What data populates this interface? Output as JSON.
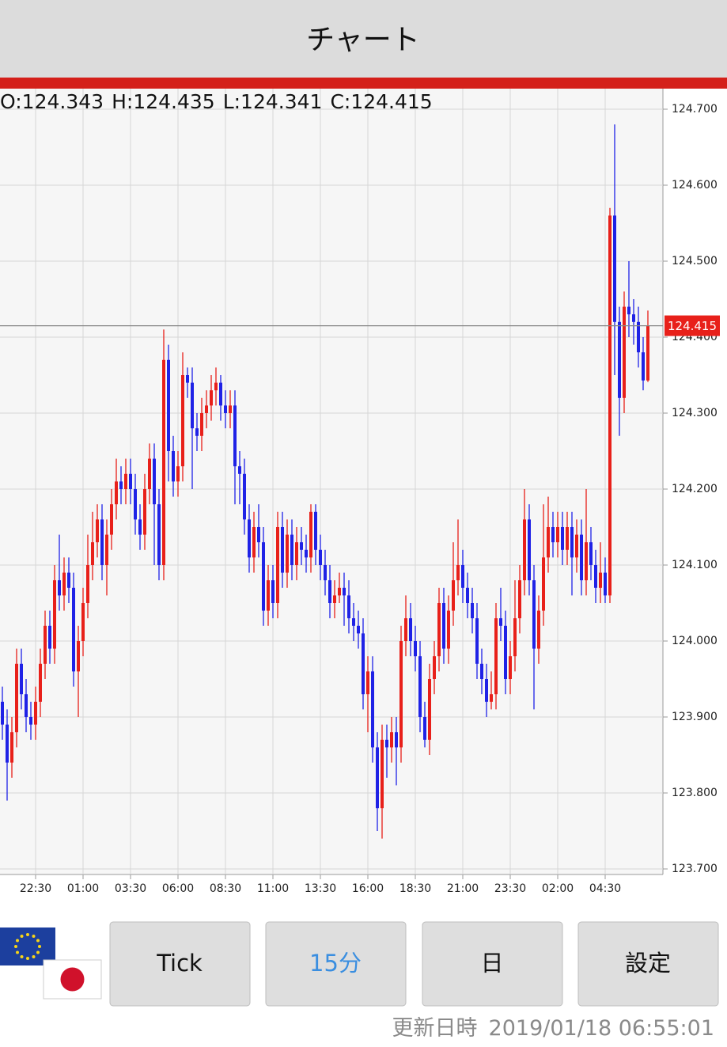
{
  "header": {
    "title": "チャート"
  },
  "chart_data": {
    "type": "candlestick",
    "ohlc_labels": [
      "O:",
      "H:",
      "L:",
      "C:"
    ],
    "categories": [
      null,
      null,
      null,
      null,
      null,
      null,
      null,
      "22:30",
      null,
      null,
      null,
      null,
      null,
      null,
      null,
      null,
      null,
      "01:00",
      null,
      null,
      null,
      null,
      null,
      null,
      null,
      null,
      null,
      "03:30",
      null,
      null,
      null,
      null,
      null,
      null,
      null,
      null,
      null,
      "06:00",
      null,
      null,
      null,
      null,
      null,
      null,
      null,
      null,
      null,
      "08:30",
      null,
      null,
      null,
      null,
      null,
      null,
      null,
      null,
      null,
      "11:00",
      null,
      null,
      null,
      null,
      null,
      null,
      null,
      null,
      null,
      "13:30",
      null,
      null,
      null,
      null,
      null,
      null,
      null,
      null,
      null,
      "16:00",
      null,
      null,
      null,
      null,
      null,
      null,
      null,
      null,
      null,
      "18:30",
      null,
      null,
      null,
      null,
      null,
      null,
      null,
      null,
      null,
      "21:00",
      null,
      null,
      null,
      null,
      null,
      null,
      null,
      null,
      null,
      "23:30",
      null,
      null,
      null,
      null,
      null,
      null,
      null,
      null,
      null,
      "02:00",
      null,
      null,
      null,
      null,
      null,
      null,
      null,
      null,
      null,
      "04:30",
      null,
      null,
      null,
      null,
      null,
      null,
      null,
      null,
      null
    ],
    "open": [
      123.92,
      123.89,
      123.84,
      123.88,
      123.97,
      123.93,
      123.9,
      123.89,
      123.92,
      123.97,
      124.02,
      123.99,
      124.08,
      124.06,
      124.09,
      124.07,
      123.96,
      124.0,
      124.05,
      124.1,
      124.13,
      124.16,
      124.1,
      124.14,
      124.18,
      124.21,
      124.2,
      124.22,
      124.2,
      124.16,
      124.14,
      124.2,
      124.24,
      124.18,
      124.1,
      124.37,
      124.25,
      124.21,
      124.23,
      124.35,
      124.34,
      124.28,
      124.27,
      124.3,
      124.31,
      124.33,
      124.34,
      124.31,
      124.3,
      124.31,
      124.23,
      124.22,
      124.16,
      124.11,
      124.15,
      124.13,
      124.04,
      124.08,
      124.05,
      124.15,
      124.09,
      124.14,
      124.1,
      124.13,
      124.12,
      124.11,
      124.17,
      124.12,
      124.1,
      124.08,
      124.05,
      124.06,
      124.07,
      124.06,
      124.03,
      124.02,
      124.01,
      123.93,
      123.96,
      123.86,
      123.78,
      123.87,
      123.86,
      123.88,
      123.86,
      124.0,
      124.03,
      124.0,
      123.98,
      123.9,
      123.87,
      123.95,
      123.98,
      124.05,
      123.99,
      124.04,
      124.08,
      124.1,
      124.07,
      124.05,
      124.03,
      123.97,
      123.95,
      123.92,
      123.93,
      124.03,
      124.02,
      123.95,
      123.98,
      124.03,
      124.08,
      124.16,
      124.08,
      123.99,
      124.04,
      124.11,
      124.15,
      124.13,
      124.15,
      124.12,
      124.15,
      124.11,
      124.14,
      124.08,
      124.13,
      124.1,
      124.07,
      124.09,
      124.06,
      124.56,
      124.42,
      124.32,
      124.44,
      124.43,
      124.42,
      124.38,
      124.343
    ],
    "high": [
      123.94,
      123.91,
      123.9,
      123.99,
      123.99,
      123.95,
      123.92,
      123.94,
      123.99,
      124.04,
      124.04,
      124.1,
      124.14,
      124.11,
      124.11,
      124.09,
      124.02,
      124.07,
      124.14,
      124.17,
      124.18,
      124.18,
      124.16,
      124.2,
      124.24,
      124.23,
      124.24,
      124.24,
      124.22,
      124.18,
      124.22,
      124.26,
      124.26,
      124.2,
      124.41,
      124.39,
      124.27,
      124.25,
      124.38,
      124.36,
      124.36,
      124.3,
      124.32,
      124.33,
      124.35,
      124.36,
      124.35,
      124.33,
      124.33,
      124.33,
      124.25,
      124.24,
      124.18,
      124.17,
      124.18,
      124.15,
      124.1,
      124.1,
      124.17,
      124.17,
      124.16,
      124.16,
      124.15,
      124.15,
      124.14,
      124.18,
      124.18,
      124.14,
      124.12,
      124.1,
      124.08,
      124.09,
      124.09,
      124.08,
      124.05,
      124.04,
      124.03,
      123.98,
      123.98,
      123.88,
      123.89,
      123.89,
      123.9,
      123.9,
      124.02,
      124.06,
      124.05,
      124.02,
      124.0,
      123.92,
      123.97,
      124.0,
      124.07,
      124.07,
      124.06,
      124.13,
      124.16,
      124.12,
      124.09,
      124.07,
      124.05,
      123.99,
      123.97,
      123.96,
      124.05,
      124.07,
      124.04,
      124.0,
      124.08,
      124.1,
      124.2,
      124.18,
      124.1,
      124.06,
      124.18,
      124.19,
      124.17,
      124.17,
      124.17,
      124.17,
      124.17,
      124.16,
      124.16,
      124.2,
      124.15,
      124.12,
      124.13,
      124.11,
      124.57,
      124.68,
      124.44,
      124.46,
      124.5,
      124.45,
      124.44,
      124.4,
      124.435
    ],
    "low": [
      123.87,
      123.79,
      123.82,
      123.86,
      123.91,
      123.88,
      123.87,
      123.87,
      123.9,
      123.95,
      123.97,
      123.97,
      124.04,
      124.04,
      124.05,
      123.94,
      123.9,
      123.98,
      124.03,
      124.08,
      124.11,
      124.08,
      124.06,
      124.12,
      124.16,
      124.18,
      124.18,
      124.18,
      124.14,
      124.12,
      124.12,
      124.18,
      124.1,
      124.08,
      124.08,
      124.21,
      124.19,
      124.19,
      124.21,
      124.32,
      124.2,
      124.25,
      124.25,
      124.28,
      124.29,
      124.31,
      124.29,
      124.28,
      124.28,
      124.18,
      124.18,
      124.14,
      124.09,
      124.09,
      124.11,
      124.02,
      124.02,
      124.03,
      124.03,
      124.07,
      124.07,
      124.08,
      124.08,
      124.1,
      124.09,
      124.09,
      124.1,
      124.08,
      124.06,
      124.03,
      124.03,
      124.05,
      124.02,
      124.01,
      124.0,
      123.99,
      123.91,
      123.88,
      123.84,
      123.75,
      123.74,
      123.82,
      123.84,
      123.81,
      123.84,
      123.98,
      123.98,
      123.96,
      123.88,
      123.86,
      123.85,
      123.93,
      123.96,
      123.97,
      123.97,
      124.02,
      124.06,
      124.05,
      124.03,
      124.01,
      123.95,
      123.93,
      123.9,
      123.91,
      123.91,
      124.0,
      123.93,
      123.93,
      123.96,
      124.01,
      124.06,
      124.06,
      123.91,
      123.97,
      124.02,
      124.09,
      124.11,
      124.11,
      124.1,
      124.1,
      124.06,
      124.09,
      124.06,
      124.06,
      124.08,
      124.05,
      124.05,
      124.05,
      124.05,
      124.35,
      124.27,
      124.3,
      124.4,
      124.39,
      124.36,
      124.33,
      124.341
    ],
    "close": [
      123.89,
      123.84,
      123.88,
      123.97,
      123.93,
      123.9,
      123.89,
      123.92,
      123.97,
      124.02,
      123.99,
      124.08,
      124.06,
      124.09,
      124.07,
      123.96,
      124.0,
      124.05,
      124.1,
      124.13,
      124.16,
      124.1,
      124.14,
      124.18,
      124.21,
      124.2,
      124.22,
      124.2,
      124.16,
      124.14,
      124.2,
      124.24,
      124.18,
      124.1,
      124.37,
      124.25,
      124.21,
      124.23,
      124.35,
      124.34,
      124.28,
      124.27,
      124.3,
      124.31,
      124.33,
      124.34,
      124.31,
      124.3,
      124.31,
      124.23,
      124.22,
      124.16,
      124.11,
      124.15,
      124.13,
      124.04,
      124.08,
      124.05,
      124.15,
      124.09,
      124.14,
      124.1,
      124.13,
      124.12,
      124.11,
      124.17,
      124.12,
      124.1,
      124.08,
      124.05,
      124.06,
      124.07,
      124.06,
      124.03,
      124.02,
      124.01,
      123.93,
      123.96,
      123.86,
      123.78,
      123.87,
      123.86,
      123.88,
      123.86,
      124.0,
      124.03,
      124.0,
      123.98,
      123.9,
      123.87,
      123.95,
      123.98,
      124.05,
      123.99,
      124.04,
      124.08,
      124.1,
      124.07,
      124.05,
      124.03,
      123.97,
      123.95,
      123.92,
      123.93,
      124.03,
      124.02,
      123.95,
      123.98,
      124.03,
      124.08,
      124.16,
      124.08,
      123.99,
      124.04,
      124.11,
      124.15,
      124.13,
      124.15,
      124.12,
      124.15,
      124.11,
      124.14,
      124.08,
      124.13,
      124.1,
      124.07,
      124.09,
      124.06,
      124.56,
      124.42,
      124.32,
      124.44,
      124.43,
      124.42,
      124.38,
      124.343,
      124.415
    ],
    "up_color": "#e8201a",
    "down_color": "#1f22e6",
    "ylim": [
      123.7,
      124.7
    ],
    "yticks": [
      {
        "value": 123.7,
        "label": "123.700"
      },
      {
        "value": 123.8,
        "label": "123.800"
      },
      {
        "value": 123.9,
        "label": "123.900"
      },
      {
        "value": 124.0,
        "label": "124.000"
      },
      {
        "value": 124.1,
        "label": "124.100"
      },
      {
        "value": 124.2,
        "label": "124.200"
      },
      {
        "value": 124.3,
        "label": "124.300"
      },
      {
        "value": 124.4,
        "label": "124.400"
      },
      {
        "value": 124.5,
        "label": "124.500"
      },
      {
        "value": 124.6,
        "label": "124.600"
      },
      {
        "value": 124.7,
        "label": "124.700"
      }
    ],
    "grid": true,
    "last_price_line": true
  },
  "buttons": [
    "Tick",
    "15分",
    "日",
    "設定"
  ],
  "active_button": 1,
  "footer": {
    "label": "更新日時",
    "timestamp": "2019/01/18 06:55:01"
  }
}
